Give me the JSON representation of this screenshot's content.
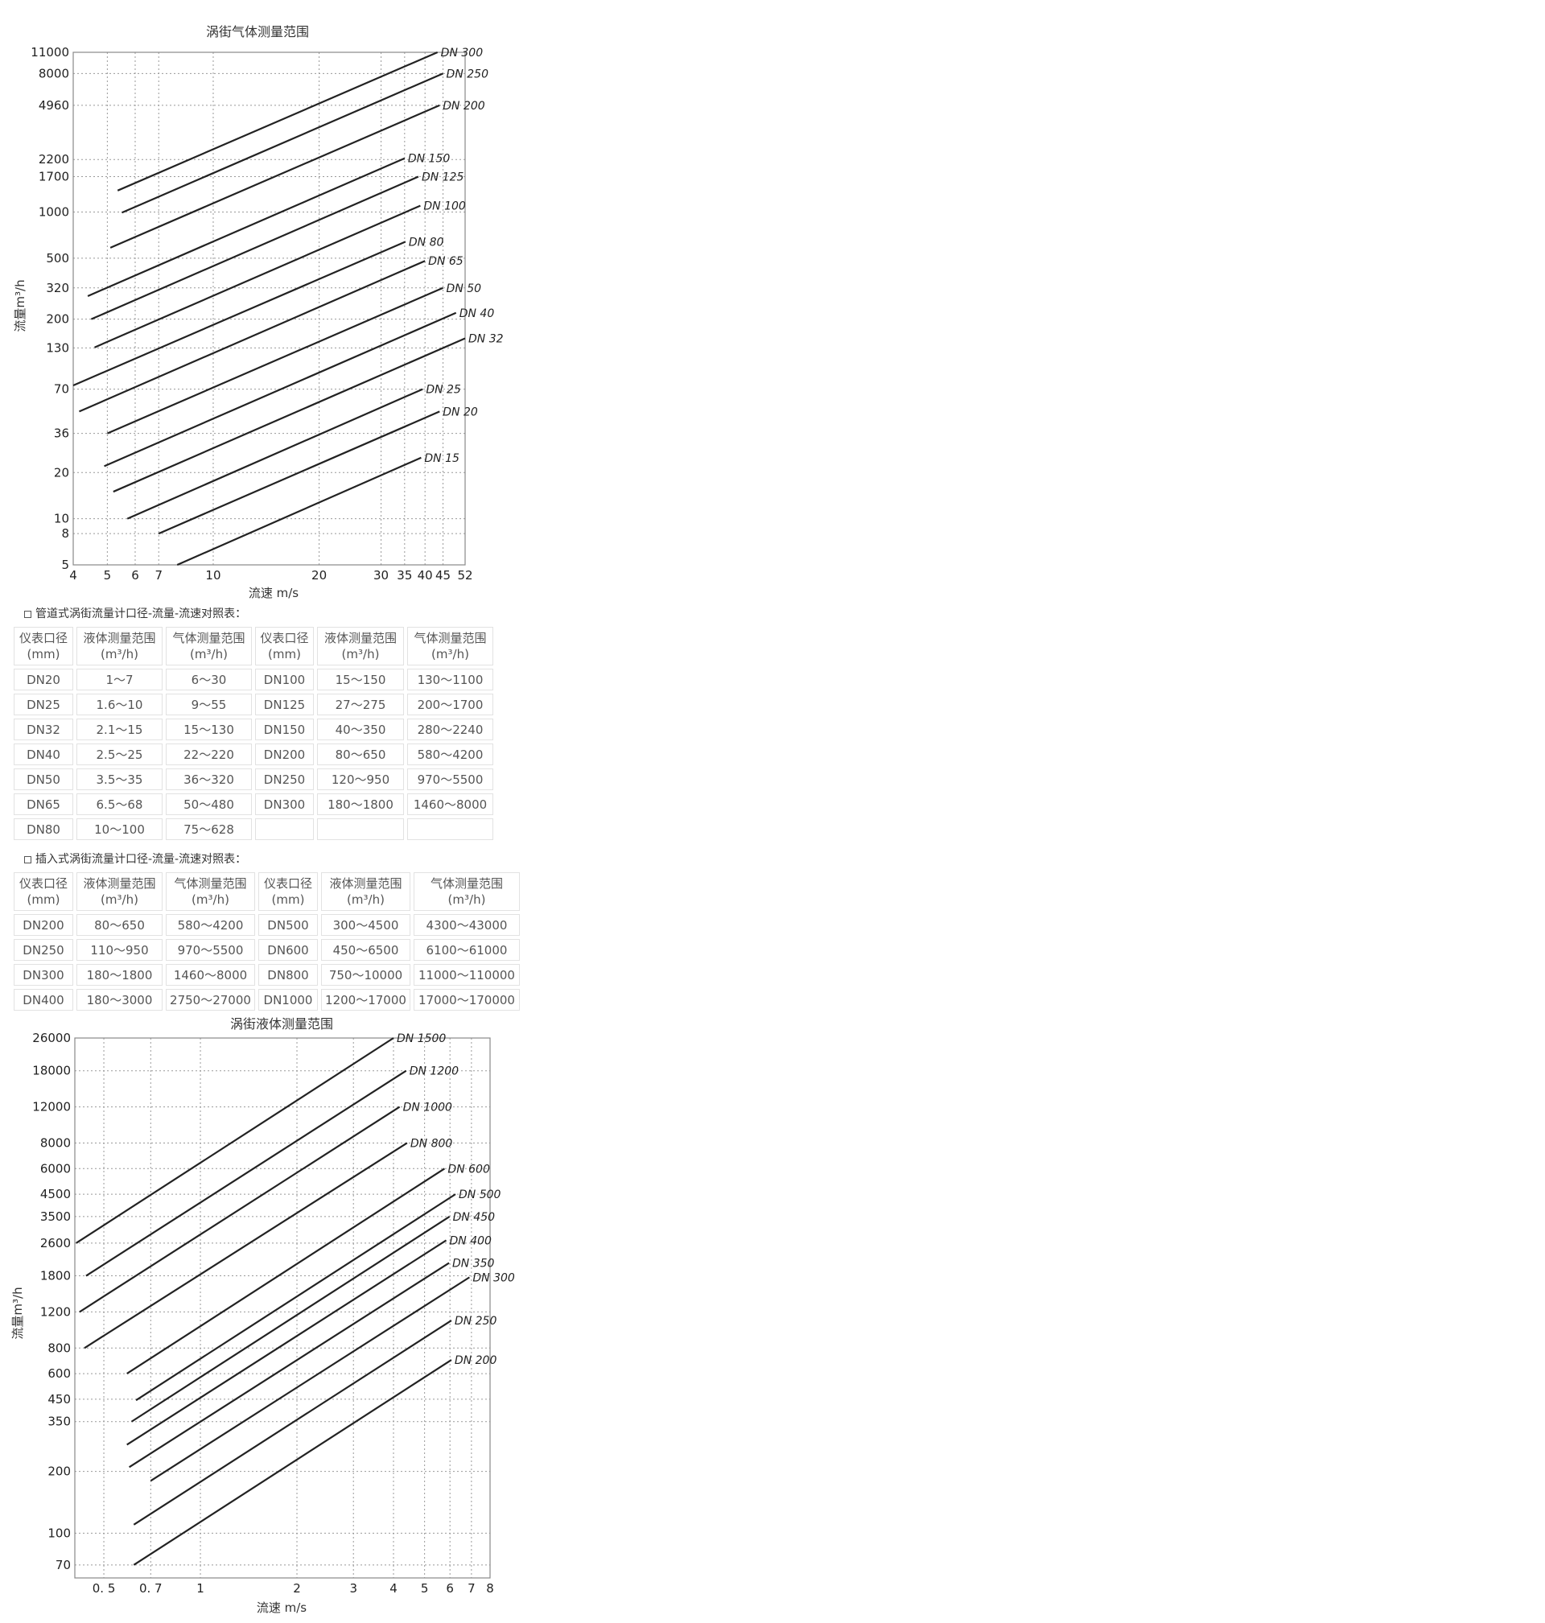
{
  "chart_data": [
    {
      "type": "line",
      "title": "涡街气体测量范围",
      "xlabel": "流速 m/s",
      "ylabel": "流量m³/h",
      "x_scale": "log",
      "y_scale": "log",
      "xlim": [
        4,
        52
      ],
      "ylim": [
        5,
        11000
      ],
      "grid": true,
      "x_ticks": [
        4,
        5,
        6,
        7,
        10,
        20,
        30,
        35,
        40,
        45,
        52
      ],
      "y_ticks": [
        5,
        8,
        10,
        20,
        36,
        70,
        130,
        200,
        320,
        500,
        1000,
        1700,
        2200,
        4960,
        8000,
        11000
      ],
      "series": [
        {
          "name": "DN 300",
          "x": [
            5.35,
            43.4
          ],
          "y": [
            1380,
            11000
          ]
        },
        {
          "name": "DN 250",
          "x": [
            5.5,
            45
          ],
          "y": [
            990,
            8000
          ]
        },
        {
          "name": "DN 200",
          "x": [
            5.1,
            44
          ],
          "y": [
            585,
            4960
          ]
        },
        {
          "name": "DN 150",
          "x": [
            4.4,
            35
          ],
          "y": [
            283,
            2240
          ]
        },
        {
          "name": "DN 125",
          "x": [
            4.5,
            38.3
          ],
          "y": [
            200,
            1700
          ]
        },
        {
          "name": "DN 100",
          "x": [
            4.6,
            38.8
          ],
          "y": [
            131,
            1100
          ]
        },
        {
          "name": "DN 80",
          "x": [
            4.0,
            35.2
          ],
          "y": [
            74,
            640
          ]
        },
        {
          "name": "DN 65",
          "x": [
            4.16,
            40
          ],
          "y": [
            50,
            480
          ]
        },
        {
          "name": "DN 50",
          "x": [
            5.0,
            45
          ],
          "y": [
            36,
            320
          ]
        },
        {
          "name": "DN 40",
          "x": [
            4.9,
            49
          ],
          "y": [
            22,
            220
          ]
        },
        {
          "name": "DN 32",
          "x": [
            5.2,
            52
          ],
          "y": [
            15,
            150
          ]
        },
        {
          "name": "DN 25",
          "x": [
            5.7,
            39.4
          ],
          "y": [
            10,
            70
          ]
        },
        {
          "name": "DN 20",
          "x": [
            7.0,
            44
          ],
          "y": [
            8,
            50
          ]
        },
        {
          "name": "DN 15",
          "x": [
            7.9,
            39
          ],
          "y": [
            5,
            25
          ]
        }
      ]
    },
    {
      "type": "line",
      "title": "涡街液体测量范围",
      "xlabel": "流速 m/s",
      "ylabel": "流量m³/h",
      "x_scale": "log",
      "y_scale": "log",
      "xlim": [
        0.406,
        8
      ],
      "ylim": [
        60.5,
        26000
      ],
      "grid": true,
      "x_ticks": [
        "0. 5",
        "0. 7",
        "1",
        "2",
        "3",
        "4",
        "5",
        "6",
        "7",
        "8"
      ],
      "x_tick_values": [
        0.5,
        0.7,
        1,
        2,
        3,
        4,
        5,
        6,
        7,
        8
      ],
      "y_ticks": [
        70,
        100,
        200,
        350,
        450,
        600,
        800,
        1200,
        1800,
        2600,
        3500,
        4500,
        6000,
        8000,
        12000,
        18000,
        26000
      ],
      "series": [
        {
          "name": "DN 1500",
          "x": [
            0.41,
            4.0
          ],
          "y": [
            2600,
            26000
          ]
        },
        {
          "name": "DN 1200",
          "x": [
            0.44,
            4.38
          ],
          "y": [
            1800,
            18000
          ]
        },
        {
          "name": "DN 1000",
          "x": [
            0.42,
            4.18
          ],
          "y": [
            1200,
            12000
          ]
        },
        {
          "name": "DN 800",
          "x": [
            0.435,
            4.41
          ],
          "y": [
            800,
            8000
          ]
        },
        {
          "name": "DN 600",
          "x": [
            0.59,
            5.77
          ],
          "y": [
            600,
            6000
          ]
        },
        {
          "name": "DN 500",
          "x": [
            0.63,
            6.24
          ],
          "y": [
            445,
            4500
          ]
        },
        {
          "name": "DN 450",
          "x": [
            0.61,
            5.98
          ],
          "y": [
            350,
            3500
          ]
        },
        {
          "name": "DN 400",
          "x": [
            0.59,
            5.84
          ],
          "y": [
            270,
            2680
          ]
        },
        {
          "name": "DN 350",
          "x": [
            0.6,
            5.96
          ],
          "y": [
            210,
            2080
          ]
        },
        {
          "name": "DN 300",
          "x": [
            0.7,
            6.9
          ],
          "y": [
            180,
            1770
          ]
        },
        {
          "name": "DN 250",
          "x": [
            0.62,
            6.06
          ],
          "y": [
            110,
            1090
          ]
        },
        {
          "name": "DN 200",
          "x": [
            0.62,
            6.06
          ],
          "y": [
            70,
            700
          ]
        }
      ]
    }
  ],
  "pipe_table": {
    "title": "管道式涡街流量计口径-流量-流速对照表：",
    "headers": [
      [
        "仪表口径",
        "(mm)"
      ],
      [
        "液体测量范围",
        "(m³/h)"
      ],
      [
        "气体测量范围",
        "(m³/h)"
      ],
      [
        "仪表口径",
        "(mm)"
      ],
      [
        "液体测量范围",
        "(m³/h)"
      ],
      [
        "气体测量范围",
        "(m³/h)"
      ]
    ],
    "rows": [
      [
        "DN20",
        "1～7",
        "6～30",
        "DN100",
        "15～150",
        "130～1100"
      ],
      [
        "DN25",
        "1.6～10",
        "9～55",
        "DN125",
        "27～275",
        "200～1700"
      ],
      [
        "DN32",
        "2.1～15",
        "15～130",
        "DN150",
        "40～350",
        "280～2240"
      ],
      [
        "DN40",
        "2.5～25",
        "22～220",
        "DN200",
        "80～650",
        "580～4200"
      ],
      [
        "DN50",
        "3.5～35",
        "36～320",
        "DN250",
        "120～950",
        "970～5500"
      ],
      [
        "DN65",
        "6.5～68",
        "50～480",
        "DN300",
        "180～1800",
        "1460～8000"
      ],
      [
        "DN80",
        "10～100",
        "75～628",
        "",
        "",
        ""
      ]
    ]
  },
  "insert_table": {
    "title": "插入式涡街流量计口径-流量-流速对照表：",
    "headers": [
      [
        "仪表口径",
        "(mm)"
      ],
      [
        "液体测量范围",
        "(m³/h)"
      ],
      [
        "气体测量范围",
        "(m³/h)"
      ],
      [
        "仪表口径",
        "(mm)"
      ],
      [
        "液体测量范围",
        "(m³/h)"
      ],
      [
        "气体测量范围",
        "(m³/h)"
      ]
    ],
    "rows": [
      [
        "DN200",
        "80～650",
        "580～4200",
        "DN500",
        "300～4500",
        "4300～43000"
      ],
      [
        "DN250",
        "110～950",
        "970～5500",
        "DN600",
        "450～6500",
        "6100～61000"
      ],
      [
        "DN300",
        "180～1800",
        "1460～8000",
        "DN800",
        "750～10000",
        "11000～110000"
      ],
      [
        "DN400",
        "180～3000",
        "2750～27000",
        "DN1000",
        "1200～17000",
        "17000～170000"
      ]
    ]
  }
}
